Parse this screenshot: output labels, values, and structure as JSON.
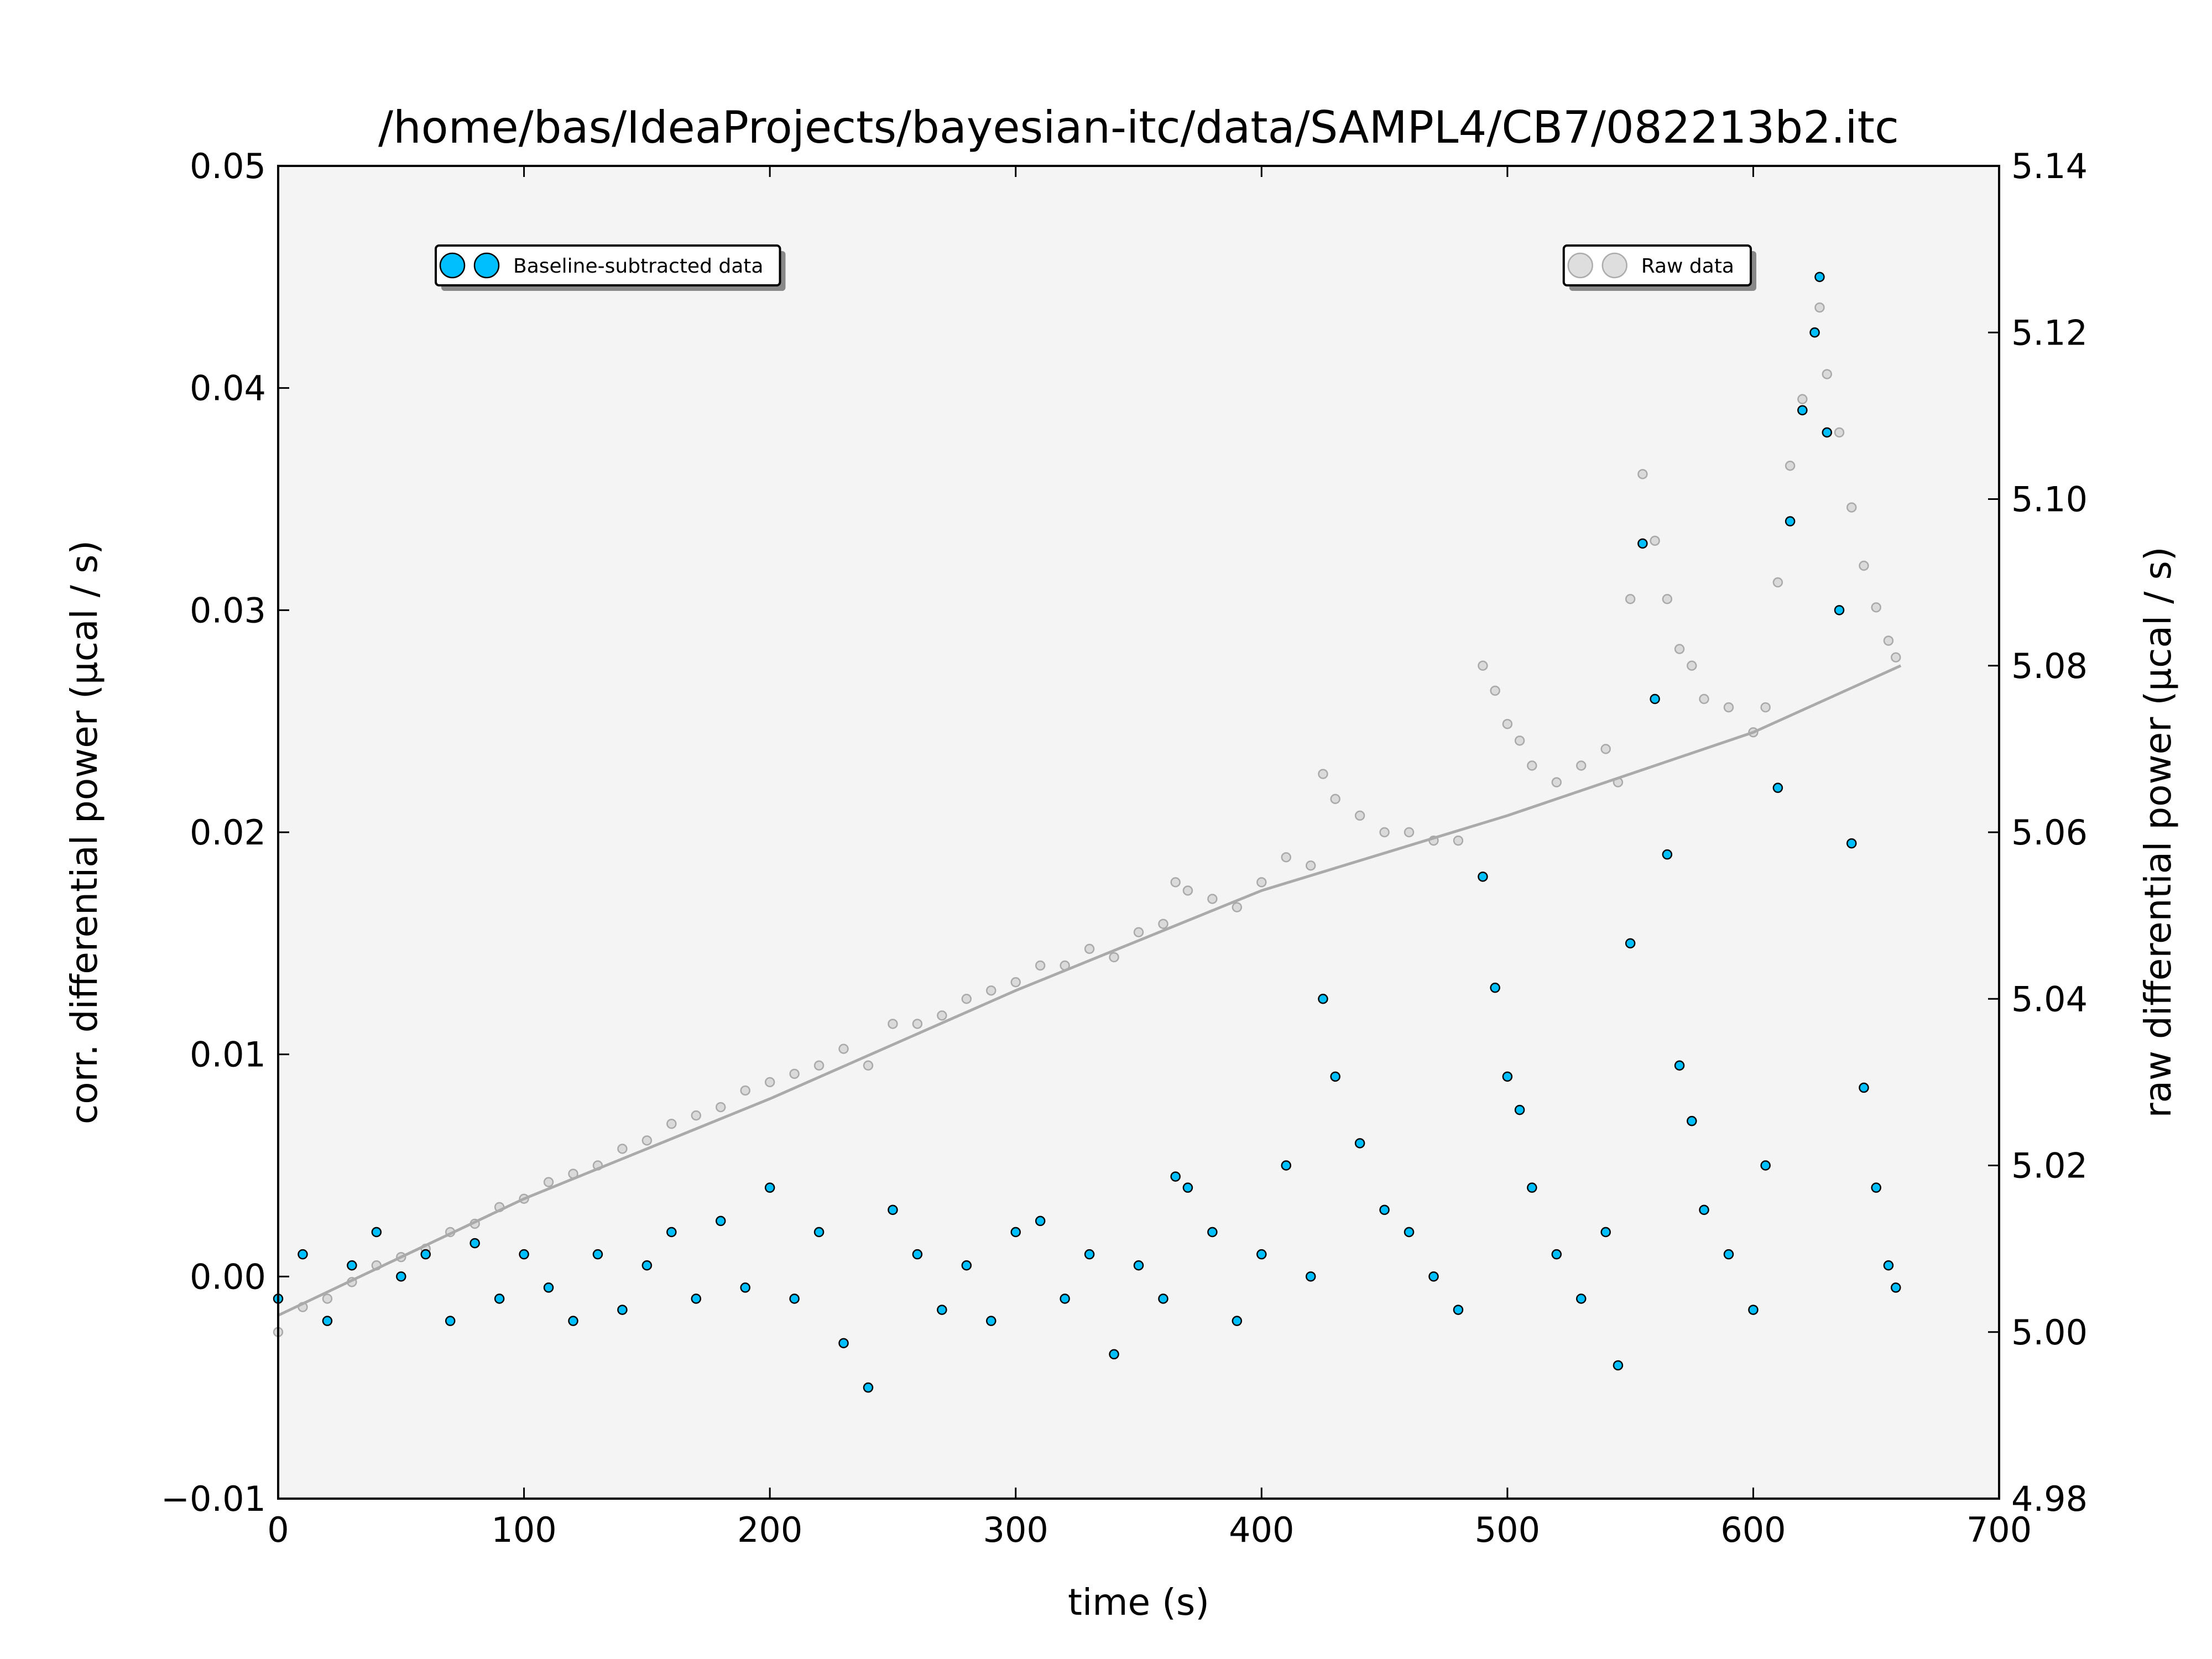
{
  "chart_data": {
    "type": "scatter",
    "title": "/home/bas/IdeaProjects/bayesian-itc/data/SAMPL4/CB7/082213b2.itc",
    "xlabel": "time (s)",
    "ylabel": "corr. differential power (μcal / s)",
    "y2label": "raw differential power (μcal / s)",
    "xlim": [
      0,
      700
    ],
    "xticks": [
      0,
      100,
      200,
      300,
      400,
      500,
      600,
      700
    ],
    "ylim": [
      -0.01,
      0.05
    ],
    "yticks": [
      {
        "value": -0.01,
        "label": "−0.01"
      },
      {
        "value": 0,
        "label": "0.00"
      },
      0.01,
      0.02,
      0.03,
      0.04,
      0.05
    ],
    "y2lim": [
      4.98,
      5.14
    ],
    "y2ticks": [
      4.98,
      {
        "value": 5.0,
        "label": "5.00"
      },
      5.02,
      5.04,
      5.06,
      5.08,
      {
        "value": 5.1,
        "label": "5.10"
      },
      5.12,
      5.14
    ],
    "series": [
      {
        "name": "Raw data",
        "color": "#c8c8c8",
        "edgecolor": "#808080",
        "alpha": 0.6,
        "axis": "y2",
        "legend": "upper right",
        "x": [
          0,
          10,
          20,
          30,
          40,
          50,
          60,
          70,
          80,
          90,
          100,
          110,
          120,
          130,
          140,
          150,
          160,
          170,
          180,
          190,
          200,
          210,
          220,
          230,
          240,
          250,
          260,
          270,
          280,
          290,
          300,
          310,
          320,
          330,
          340,
          350,
          360,
          365,
          370,
          380,
          390,
          400,
          410,
          420,
          425,
          430,
          440,
          450,
          460,
          470,
          480,
          490,
          495,
          500,
          505,
          510,
          520,
          530,
          540,
          545,
          550,
          555,
          560,
          565,
          570,
          575,
          580,
          590,
          600,
          605,
          610,
          615,
          620,
          625,
          627,
          630,
          635,
          640,
          645,
          650,
          655,
          658
        ],
        "values": [
          5.0,
          5.003,
          5.004,
          5.006,
          5.008,
          5.009,
          5.01,
          5.012,
          5.013,
          5.015,
          5.016,
          5.018,
          5.019,
          5.02,
          5.022,
          5.023,
          5.025,
          5.026,
          5.027,
          5.029,
          5.03,
          5.031,
          5.032,
          5.034,
          5.032,
          5.037,
          5.037,
          5.038,
          5.04,
          5.041,
          5.042,
          5.044,
          5.044,
          5.046,
          5.045,
          5.048,
          5.049,
          5.054,
          5.053,
          5.052,
          5.051,
          5.054,
          5.057,
          5.056,
          5.067,
          5.064,
          5.062,
          5.06,
          5.06,
          5.059,
          5.059,
          5.08,
          5.077,
          5.073,
          5.071,
          5.068,
          5.066,
          5.068,
          5.07,
          5.066,
          5.088,
          5.103,
          5.095,
          5.088,
          5.082,
          5.08,
          5.076,
          5.075,
          5.072,
          5.075,
          5.09,
          5.104,
          5.112,
          5.12,
          5.123,
          5.115,
          5.108,
          5.099,
          5.092,
          5.087,
          5.083,
          5.081
        ]
      },
      {
        "name": "Baseline-subtracted data",
        "color": "#00bfff",
        "edgecolor": "#000000",
        "alpha": 1,
        "axis": "y",
        "legend": "upper left",
        "x": [
          0,
          10,
          20,
          30,
          40,
          50,
          60,
          70,
          80,
          90,
          100,
          110,
          120,
          130,
          140,
          150,
          160,
          170,
          180,
          190,
          200,
          210,
          220,
          230,
          240,
          250,
          260,
          270,
          280,
          290,
          300,
          310,
          320,
          330,
          340,
          350,
          360,
          365,
          370,
          380,
          390,
          400,
          410,
          420,
          425,
          430,
          440,
          450,
          460,
          470,
          480,
          490,
          495,
          500,
          505,
          510,
          520,
          530,
          540,
          545,
          550,
          555,
          560,
          565,
          570,
          575,
          580,
          590,
          600,
          605,
          610,
          615,
          620,
          625,
          627,
          630,
          635,
          640,
          645,
          650,
          655,
          658
        ],
        "values": [
          -0.001,
          0.001,
          -0.002,
          0.0005,
          0.002,
          0.0,
          0.001,
          -0.002,
          0.0015,
          -0.001,
          0.001,
          -0.0005,
          -0.002,
          0.001,
          -0.0015,
          0.0005,
          0.002,
          -0.001,
          0.0025,
          -0.0005,
          0.004,
          -0.001,
          0.002,
          -0.003,
          -0.005,
          0.003,
          0.001,
          -0.0015,
          0.0005,
          -0.002,
          0.002,
          0.0025,
          -0.001,
          0.001,
          -0.0035,
          0.0005,
          -0.001,
          0.0045,
          0.004,
          0.002,
          -0.002,
          0.001,
          0.005,
          0.0,
          0.0125,
          0.009,
          0.006,
          0.003,
          0.002,
          0.0,
          -0.0015,
          0.018,
          0.013,
          0.009,
          0.0075,
          0.004,
          0.001,
          -0.001,
          0.002,
          -0.004,
          0.015,
          0.033,
          0.026,
          0.019,
          0.0095,
          0.007,
          0.003,
          0.001,
          -0.0015,
          0.005,
          0.022,
          0.034,
          0.039,
          0.0425,
          0.045,
          0.038,
          0.03,
          0.0195,
          0.0085,
          0.004,
          0.0005,
          -0.0005
        ]
      }
    ],
    "lines": [
      {
        "color": "#aaaaaa",
        "axis": "y2",
        "x": [
          0,
          100,
          200,
          300,
          400,
          500,
          600,
          660
        ],
        "values": [
          5.002,
          5.016,
          5.028,
          5.041,
          5.053,
          5.062,
          5.072,
          5.08
        ]
      }
    ]
  }
}
